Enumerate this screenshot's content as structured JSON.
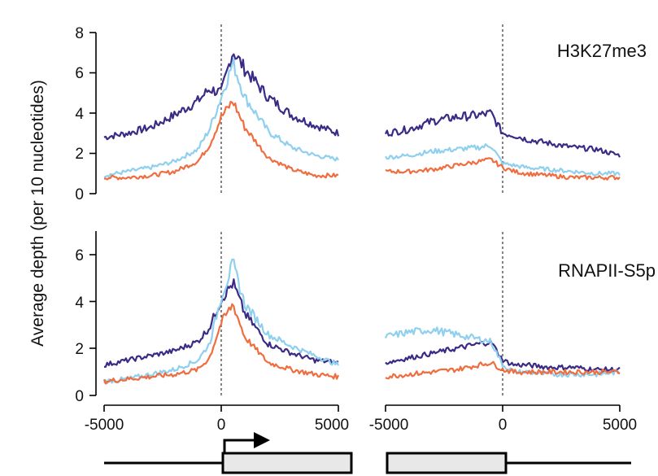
{
  "y_axis_title": "Average depth (per 10 nucleotides)",
  "colors": {
    "series_dark_purple": "#3b2a86",
    "series_light_blue": "#8fd0ee",
    "series_orange": "#ef6d3f",
    "gene_box_fill": "#e8e8e8"
  },
  "chart_data": [
    {
      "type": "line",
      "title": "H3K27me3",
      "sections": [
        "TSS-centered",
        "TES-centered"
      ],
      "x_ticks_left": [
        "-5000",
        "0",
        "5000"
      ],
      "x_ticks_right": [
        "-5000",
        "0",
        "5000"
      ],
      "xlim_left": [
        -5000,
        5000
      ],
      "xlim_right": [
        -5000,
        5000
      ],
      "ylim": [
        0,
        8
      ],
      "y_ticks": [
        "0",
        "2",
        "4",
        "6",
        "8"
      ],
      "reference_line_x": 0,
      "x": [
        -5000,
        -4000,
        -3000,
        -2000,
        -1000,
        -500,
        0,
        500,
        1000,
        2000,
        3000,
        4000,
        5000
      ],
      "series": [
        {
          "color": "#3b2a86",
          "left_values": [
            2.8,
            3.0,
            3.3,
            3.9,
            4.6,
            5.2,
            5.0,
            7.1,
            6.2,
            4.8,
            3.9,
            3.4,
            3.0
          ],
          "right_values": [
            3.0,
            3.2,
            3.6,
            3.8,
            3.9,
            4.0,
            3.0,
            2.9,
            2.7,
            2.5,
            2.3,
            2.2,
            1.9
          ]
        },
        {
          "color": "#8fd0ee",
          "left_values": [
            0.9,
            1.1,
            1.3,
            1.6,
            2.2,
            3.2,
            4.8,
            6.5,
            4.8,
            3.1,
            2.3,
            1.9,
            1.7
          ],
          "right_values": [
            1.8,
            1.9,
            2.1,
            2.2,
            2.3,
            2.4,
            1.5,
            1.4,
            1.3,
            1.2,
            1.1,
            1.0,
            1.0
          ]
        },
        {
          "color": "#ef6d3f",
          "left_values": [
            0.8,
            0.8,
            0.9,
            1.1,
            1.6,
            2.4,
            3.8,
            4.6,
            3.3,
            1.8,
            1.2,
            0.9,
            0.9
          ],
          "right_values": [
            1.1,
            1.1,
            1.2,
            1.4,
            1.6,
            1.7,
            1.3,
            1.1,
            1.0,
            0.9,
            0.8,
            0.8,
            0.8
          ]
        }
      ]
    },
    {
      "type": "line",
      "title": "RNAPII-S5p",
      "sections": [
        "TSS-centered",
        "TES-centered"
      ],
      "x_ticks_left": [
        "-5000",
        "0",
        "5000"
      ],
      "x_ticks_right": [
        "-5000",
        "0",
        "5000"
      ],
      "xlim_left": [
        -5000,
        5000
      ],
      "xlim_right": [
        -5000,
        5000
      ],
      "ylim": [
        0,
        7
      ],
      "y_ticks": [
        "0",
        "2",
        "4",
        "6"
      ],
      "reference_line_x": 0,
      "x": [
        -5000,
        -4000,
        -3000,
        -2000,
        -1000,
        -500,
        0,
        500,
        1000,
        2000,
        3000,
        4000,
        5000
      ],
      "series": [
        {
          "color": "#3b2a86",
          "left_values": [
            1.3,
            1.5,
            1.7,
            1.9,
            2.3,
            2.9,
            4.1,
            4.8,
            3.5,
            2.2,
            1.8,
            1.5,
            1.4
          ],
          "right_values": [
            1.4,
            1.6,
            1.8,
            2.0,
            2.2,
            2.3,
            1.5,
            1.3,
            1.3,
            1.2,
            1.2,
            1.1,
            1.1
          ]
        },
        {
          "color": "#8fd0ee",
          "left_values": [
            0.6,
            0.7,
            0.9,
            1.1,
            1.5,
            2.2,
            4.2,
            5.6,
            3.9,
            2.6,
            2.1,
            1.7,
            1.3
          ],
          "right_values": [
            2.5,
            2.7,
            2.8,
            2.6,
            2.4,
            2.3,
            1.3,
            1.0,
            1.0,
            0.9,
            0.9,
            0.9,
            1.0
          ]
        },
        {
          "color": "#ef6d3f",
          "left_values": [
            0.6,
            0.7,
            0.8,
            0.9,
            1.1,
            1.6,
            3.1,
            3.9,
            2.5,
            1.4,
            1.1,
            0.9,
            0.8
          ],
          "right_values": [
            0.8,
            0.9,
            1.0,
            1.1,
            1.3,
            1.4,
            1.1,
            1.0,
            1.0,
            1.0,
            1.0,
            1.0,
            1.0
          ]
        }
      ]
    }
  ],
  "x_axis_labels": {
    "left": [
      "-5000",
      "0",
      "5000"
    ],
    "right": [
      "-5000",
      "0",
      "5000"
    ]
  }
}
